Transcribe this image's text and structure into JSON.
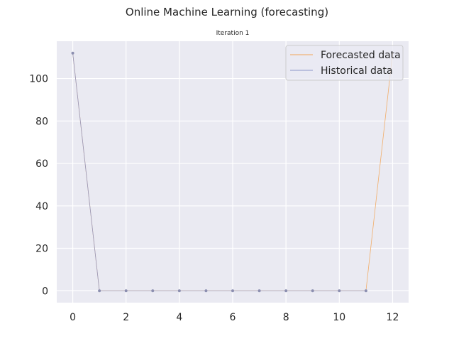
{
  "chart_data": {
    "type": "line",
    "title": "Online Machine Learning (forecasting)",
    "subtitle": "Iteration 1",
    "xlabel": "",
    "ylabel": "",
    "xlim": [
      -0.6,
      12.6
    ],
    "ylim": [
      -5.6,
      117.6
    ],
    "x_ticks": [
      0,
      2,
      4,
      6,
      8,
      10,
      12
    ],
    "y_ticks": [
      0,
      20,
      40,
      60,
      80,
      100
    ],
    "grid": true,
    "legend": {
      "position": "top-right",
      "entries": [
        "Forecasted data",
        "Historical data"
      ]
    },
    "series": [
      {
        "name": "Forecasted data",
        "color": "#f2a65a",
        "x": [
          0,
          1,
          2,
          3,
          4,
          5,
          6,
          7,
          8,
          9,
          10,
          11,
          12
        ],
        "values": [
          112,
          0,
          0,
          0,
          0,
          0,
          0,
          0,
          0,
          0,
          0,
          0,
          112
        ]
      },
      {
        "name": "Historical data",
        "color": "#8c97c9",
        "x": [
          0,
          1,
          2,
          3,
          4,
          5,
          6,
          7,
          8,
          9,
          10,
          11
        ],
        "values": [
          112,
          0,
          0,
          0,
          0,
          0,
          0,
          0,
          0,
          0,
          0,
          0
        ]
      }
    ]
  },
  "colors": {
    "plot_background": "#eaeaf2",
    "grid": "#ffffff",
    "forecast_line": "#f2a65a",
    "historical_line": "#8c97c9",
    "marker": "#8c8fb0"
  }
}
